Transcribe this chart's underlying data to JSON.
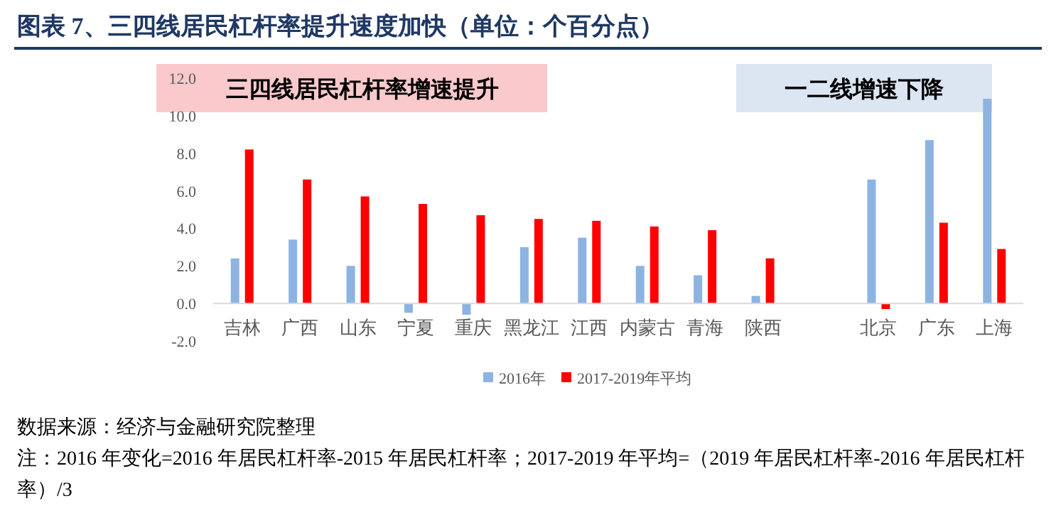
{
  "chart_data": {
    "type": "bar",
    "title": "图表 7、三四线居民杠杆率提升速度加快（单位：个百分点）",
    "categories": [
      "吉林",
      "广西",
      "山东",
      "宁夏",
      "重庆",
      "黑龙江",
      "江西",
      "内蒙古",
      "青海",
      "陕西",
      null,
      "北京",
      "广东",
      "上海"
    ],
    "series": [
      {
        "name": "2016年",
        "color": "#8db3e2",
        "values": [
          2.4,
          3.4,
          2.0,
          -0.5,
          -0.6,
          3.0,
          3.5,
          2.0,
          1.5,
          0.4,
          null,
          6.6,
          8.7,
          10.9
        ]
      },
      {
        "name": "2017-2019年平均",
        "color": "#ff0000",
        "values": [
          8.2,
          6.6,
          5.7,
          5.3,
          4.7,
          4.5,
          4.4,
          4.1,
          3.9,
          2.4,
          null,
          -0.3,
          4.3,
          2.9
        ]
      }
    ],
    "ylim": [
      -2,
      12
    ],
    "yticks": [
      {
        "value": -2,
        "label": "-2.0"
      },
      {
        "value": 0,
        "label": "0.0"
      },
      {
        "value": 2,
        "label": "2.0"
      },
      {
        "value": 4,
        "label": "4.0"
      },
      {
        "value": 6,
        "label": "6.0"
      },
      {
        "value": 8,
        "label": "8.0"
      },
      {
        "value": 10,
        "label": "10.0"
      },
      {
        "value": 12,
        "label": "12.0"
      }
    ],
    "legend": "bottom",
    "annotations": [
      "三四线居民杠杆率增速提升",
      "一二线增速下降",
      "数据来源：经济与金融研究院整理",
      "注：2016 年变化=2016 年居民杠杆率-2015 年居民杠杆率；2017-2019 年平均=（2019 年居民杠杆率-2016 年居民杠杆率）/3"
    ]
  }
}
